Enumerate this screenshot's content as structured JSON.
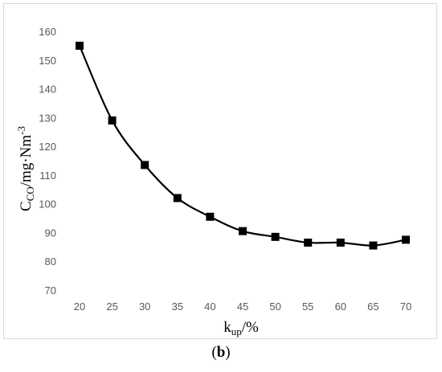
{
  "chart_data": {
    "type": "line",
    "x": [
      20,
      25,
      30,
      35,
      40,
      45,
      50,
      55,
      60,
      65,
      70
    ],
    "series": [
      {
        "values": [
          155,
          129,
          113.5,
          102,
          95.5,
          90.5,
          88.5,
          86.5,
          86.5,
          85.5,
          87.5
        ]
      }
    ],
    "ylim": [
      70,
      160
    ],
    "yticks": [
      70,
      80,
      90,
      100,
      110,
      120,
      130,
      140,
      150,
      160
    ],
    "xticks": [
      20,
      25,
      30,
      35,
      40,
      45,
      50,
      55,
      60,
      65,
      70
    ],
    "ylabel": {
      "main": "C",
      "sub": "CO",
      "rest": "/mg·Nm",
      "sup": "-3"
    },
    "xlabel": {
      "main": "k",
      "sub": "up",
      "rest": "/%"
    },
    "grid": false,
    "marker": "square",
    "line_color": "#000000"
  },
  "caption": {
    "open": "(",
    "letter": "b",
    "close": ")"
  }
}
